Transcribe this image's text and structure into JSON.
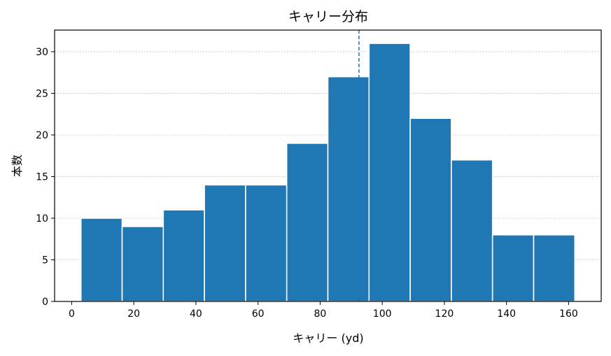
{
  "chart_data": {
    "type": "bar",
    "title": "キャリー分布",
    "xlabel": "キャリー (yd)",
    "ylabel": "本数",
    "bin_edges": [
      3,
      16.25,
      29.5,
      42.75,
      56,
      69.25,
      82.5,
      95.75,
      109,
      122.25,
      135.5,
      148.75,
      162
    ],
    "values": [
      10,
      9,
      11,
      14,
      14,
      19,
      27,
      31,
      22,
      17,
      8,
      8
    ],
    "xlim": [
      -5.5,
      170.5
    ],
    "ylim": [
      0,
      32.6
    ],
    "x_ticks": [
      0,
      20,
      40,
      60,
      80,
      100,
      120,
      140,
      160
    ],
    "y_ticks": [
      0,
      5,
      10,
      15,
      20,
      25,
      30
    ],
    "reference_line_x": 92.5,
    "grid": "y-dotted",
    "colors": {
      "bar": "#1f77b4",
      "bar_edge": "#ffffff",
      "grid": "#b0b0b0",
      "reference_line": "#1f77b4"
    }
  }
}
